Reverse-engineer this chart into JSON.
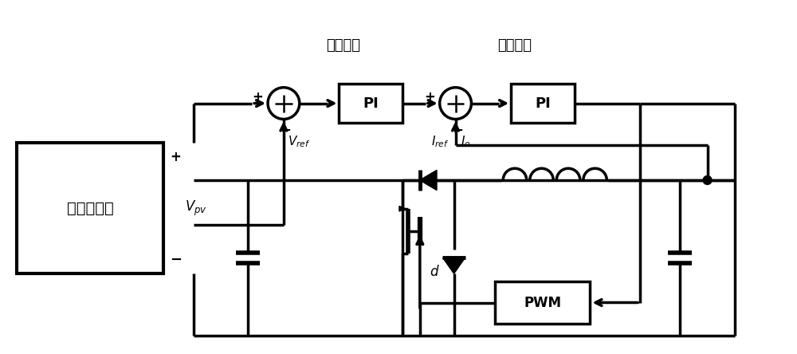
{
  "bg_color": "#ffffff",
  "line_color": "#000000",
  "lw": 2.5,
  "figsize": [
    10.0,
    4.44
  ],
  "dpi": 100,
  "label_voltage_loop": "电压外环",
  "label_current_loop": "电流内环",
  "label_pv": "光伏晶元串",
  "label_PI": "PI",
  "label_PWM": "PWM",
  "label_Vref": "$V_{ref}$",
  "label_Iref": "$I_{ref}$",
  "label_Io": "$I_o$",
  "label_Vpv": "$V_{pv}$",
  "label_d": "$d$",
  "label_plus": "+",
  "label_minus": "−"
}
